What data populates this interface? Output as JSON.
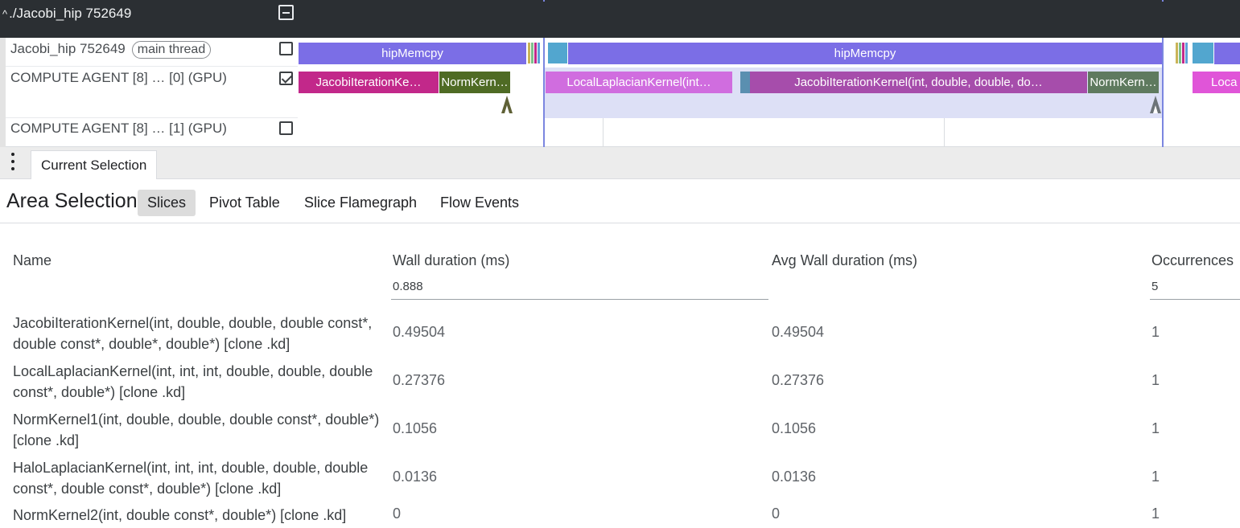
{
  "process": {
    "title": "./Jacobi_hip 752649"
  },
  "tracks": [
    {
      "label": "Jacobi_hip 752649",
      "badge": "main thread",
      "checked": false
    },
    {
      "label": "COMPUTE AGENT [8] …   [0] (GPU)",
      "checked": true
    },
    {
      "label": "COMPUTE AGENT [8] …   [1] (GPU)",
      "checked": false
    }
  ],
  "slices": {
    "memcpy_1": "hipMemcpy",
    "memcpy_2": "hipMemcpy",
    "jacobi_1": "JacobiIterationKe…",
    "norm_1": "NormKern…",
    "laplacian_1": "LocalLaplacianKernel(int…",
    "jacobi_2": "JacobiIterationKernel(int, double, double, do…",
    "norm_2": "NormKern…",
    "local_3": "Loca"
  },
  "colors": {
    "memcpy": "#7b6ee6",
    "jacobi": "#c2288a",
    "norm_1": "#4f6b24",
    "laplacian": "#d06ddf",
    "jacobi_2": "#a64dab",
    "norm_2": "#5f7a5f",
    "local_3": "#e055d8",
    "selection": "#7b86e0"
  },
  "tabs": {
    "current": "Current Selection"
  },
  "area": {
    "title": "Area Selection",
    "subtabs": [
      "Slices",
      "Pivot Table",
      "Slice Flamegraph",
      "Flow Events"
    ],
    "active_subtab": "Slices"
  },
  "table": {
    "headers": {
      "name": "Name",
      "wall": "Wall duration (ms)",
      "avg": "Avg Wall duration (ms)",
      "occ": "Occurrences"
    },
    "totals": {
      "wall": "0.888",
      "occ": "5"
    },
    "rows": [
      {
        "name": "JacobiIterationKernel(int, double, double, double const*, double const*, double*, double*) [clone .kd]",
        "wall": "0.49504",
        "avg": "0.49504",
        "occ": "1"
      },
      {
        "name": "LocalLaplacianKernel(int, int, int, double, double, double const*, double*) [clone .kd]",
        "wall": "0.27376",
        "avg": "0.27376",
        "occ": "1"
      },
      {
        "name": "NormKernel1(int, double, double, double const*, double*) [clone .kd]",
        "wall": "0.1056",
        "avg": "0.1056",
        "occ": "1"
      },
      {
        "name": "HaloLaplacianKernel(int, int, int, double, double, double const*, double const*, double*) [clone .kd]",
        "wall": "0.0136",
        "avg": "0.0136",
        "occ": "1"
      },
      {
        "name": "NormKernel2(int, double const*, double*) [clone .kd]",
        "wall": "0",
        "avg": "0",
        "occ": "1"
      }
    ]
  }
}
